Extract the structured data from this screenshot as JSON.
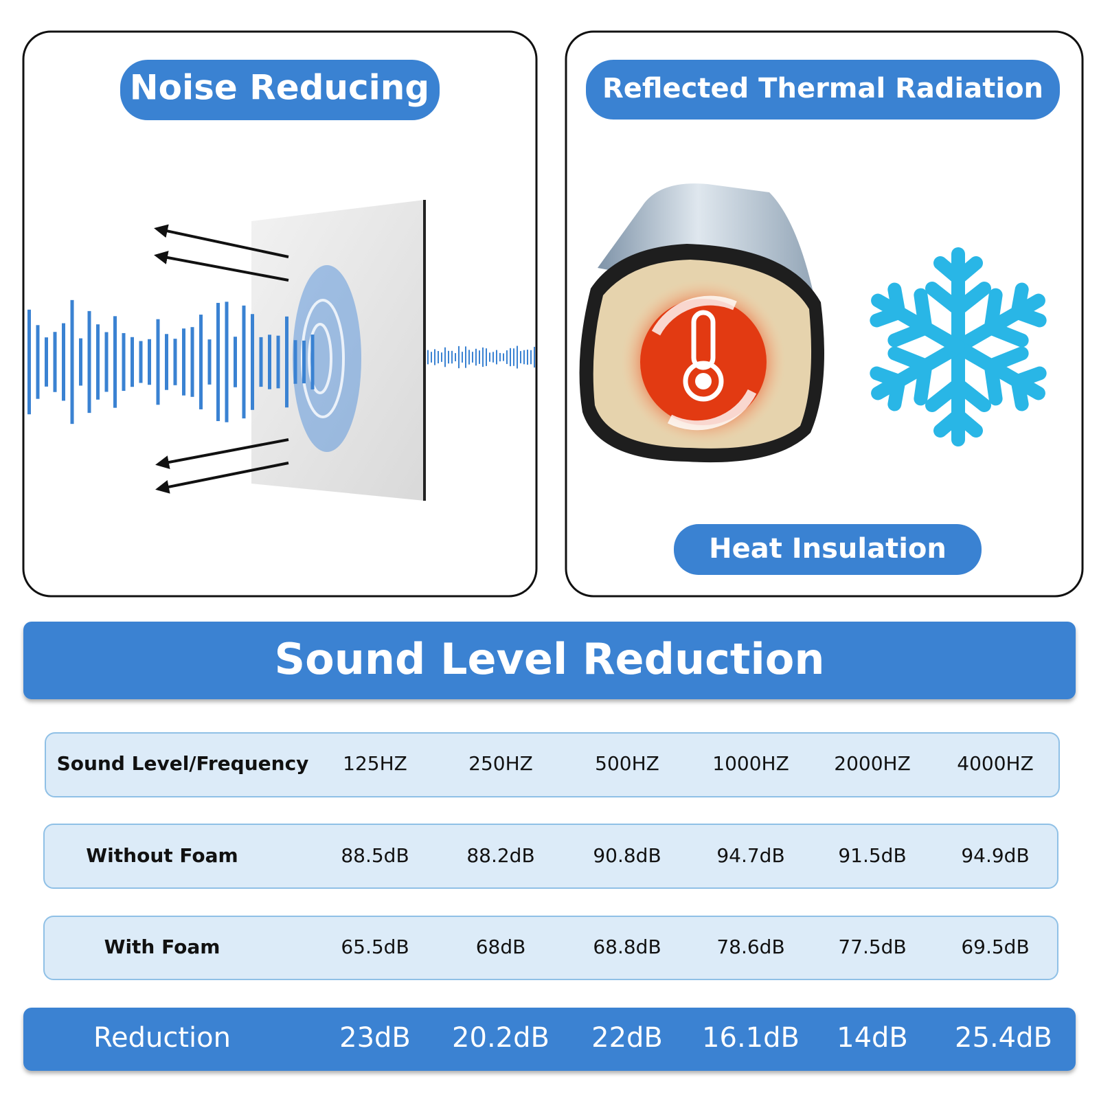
{
  "panels": [
    {
      "title": "Noise Reducing"
    },
    {
      "title": "Reflected Thermal Radiation",
      "caption": "Heat Insulation"
    }
  ],
  "table": {
    "title": "Sound Level Reduction",
    "header": [
      "Sound Level/Frequency",
      "125HZ",
      "250HZ",
      "500HZ",
      "1000HZ",
      "2000HZ",
      "4000HZ"
    ],
    "rows": [
      [
        "Without Foam",
        "88.5dB",
        "88.2dB",
        "90.8dB",
        "94.7dB",
        "91.5dB",
        "94.9dB"
      ],
      [
        "With Foam",
        "65.5dB",
        "68dB",
        "68.8dB",
        "78.6dB",
        "77.5dB",
        "69.5dB"
      ]
    ],
    "footer": [
      "Reduction",
      "23dB",
      "20.2dB",
      "22dB",
      "16.1dB",
      "14dB",
      "25.4dB"
    ]
  }
}
